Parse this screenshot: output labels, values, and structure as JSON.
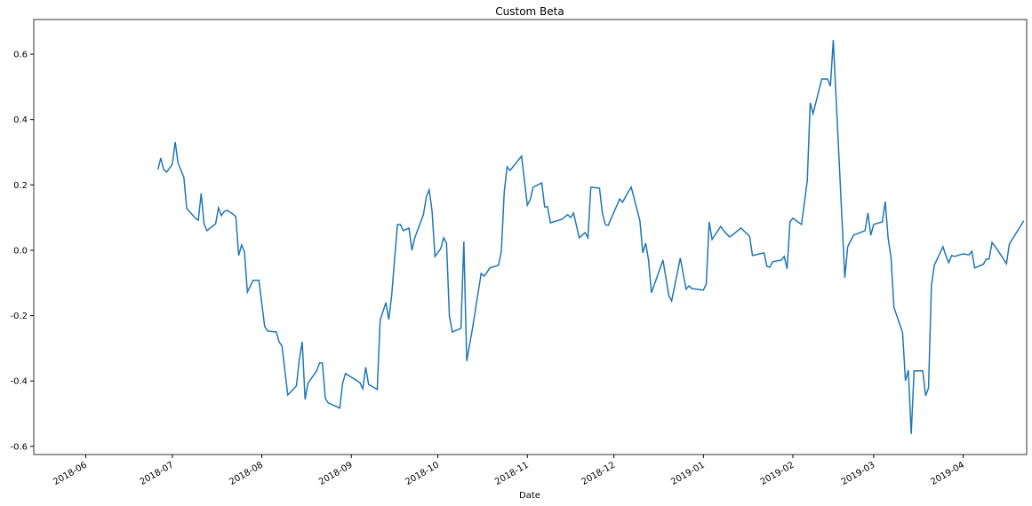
{
  "chart_data": {
    "type": "line",
    "title": "Custom Beta",
    "x_label": "Date",
    "x": [
      17708,
      17709,
      17710,
      17711,
      17713,
      17714,
      17715,
      17717,
      17718,
      17721,
      17722,
      17723,
      17724,
      17725,
      17728,
      17729,
      17730,
      17731,
      17732,
      17734,
      17735,
      17736,
      17737,
      17738,
      17739,
      17741,
      17743,
      17744,
      17745,
      17746,
      17749,
      17750,
      17751,
      17753,
      17756,
      17757,
      17758,
      17759,
      17760,
      17763,
      17764,
      17765,
      17766,
      17767,
      17771,
      17772,
      17773,
      17778,
      17779,
      17780,
      17781,
      17784,
      17785,
      17787,
      17788,
      17789,
      17791,
      17792,
      17793,
      17795,
      17796,
      17797,
      17800,
      17801,
      17802,
      17803,
      17804,
      17806,
      17807,
      17808,
      17809,
      17810,
      17813,
      17814,
      17815,
      17817,
      17820,
      17821,
      17822,
      17823,
      17826,
      17827,
      17828,
      17829,
      17830,
      17834,
      17836,
      17837,
      17838,
      17841,
      17842,
      17843,
      17844,
      17848,
      17850,
      17851,
      17852,
      17854,
      17856,
      17857,
      17858,
      17861,
      17862,
      17863,
      17864,
      17868,
      17869,
      17871,
      17872,
      17875,
      17876,
      17877,
      17878,
      17879,
      17883,
      17885,
      17886,
      17889,
      17891,
      17892,
      17893,
      17897,
      17898,
      17899,
      17900,
      17903,
      17904,
      17906,
      17907,
      17910,
      17913,
      17914,
      17918,
      17919,
      17920,
      17921,
      17924,
      17925,
      17926,
      17927,
      17928,
      17931,
      17933,
      17934,
      17935,
      17938,
      17940,
      17941,
      17942,
      17946,
      17947,
      17949,
      17953,
      17954,
      17955,
      17956,
      17959,
      17960,
      17961,
      17962,
      17963,
      17966,
      17967,
      17968,
      17969,
      17970,
      17973,
      17974,
      17975,
      17976,
      17977,
      17980,
      17981,
      17982,
      17983,
      17984,
      17987,
      17989,
      17990,
      17991,
      17994,
      17995,
      17996,
      17997,
      17999,
      18002,
      18003,
      18008
    ],
    "values": [
      0.247,
      0.282,
      0.247,
      0.239,
      0.263,
      0.331,
      0.266,
      0.223,
      0.128,
      0.098,
      0.092,
      0.174,
      0.081,
      0.06,
      0.081,
      0.13,
      0.106,
      0.119,
      0.122,
      0.111,
      0.103,
      -0.016,
      0.016,
      -0.005,
      -0.128,
      -0.092,
      -0.092,
      -0.163,
      -0.233,
      -0.247,
      -0.25,
      -0.28,
      -0.293,
      -0.443,
      -0.415,
      -0.334,
      -0.28,
      -0.456,
      -0.407,
      -0.369,
      -0.345,
      -0.345,
      -0.453,
      -0.467,
      -0.483,
      -0.407,
      -0.377,
      -0.405,
      -0.424,
      -0.358,
      -0.41,
      -0.426,
      -0.214,
      -0.16,
      -0.212,
      -0.138,
      0.079,
      0.079,
      0.06,
      0.068,
      0,
      0.038,
      0.109,
      0.163,
      0.185,
      0.119,
      -0.019,
      0.005,
      0.038,
      0.022,
      -0.201,
      -0.25,
      -0.239,
      0.027,
      -0.339,
      -0.239,
      -0.071,
      -0.079,
      -0.068,
      -0.054,
      -0.046,
      -0.003,
      0.179,
      0.255,
      0.244,
      0.288,
      0.138,
      0.155,
      0.193,
      0.206,
      0.133,
      0.133,
      0.084,
      0.095,
      0.109,
      0.1,
      0.114,
      0.038,
      0.054,
      0.038,
      0.193,
      0.19,
      0.114,
      0.079,
      0.076,
      0.157,
      0.147,
      0.179,
      0.193,
      0.09,
      -0.008,
      0.022,
      -0.03,
      -0.13,
      -0.03,
      -0.138,
      -0.155,
      -0.024,
      -0.119,
      -0.109,
      -0.117,
      -0.122,
      -0.103,
      0.087,
      0.033,
      0.073,
      0.06,
      0.041,
      0.046,
      0.068,
      0.043,
      -0.016,
      -0.008,
      -0.049,
      -0.052,
      -0.035,
      -0.03,
      -0.019,
      -0.057,
      0.087,
      0.098,
      0.079,
      0.214,
      0.451,
      0.418,
      0.524,
      0.524,
      0.502,
      0.643,
      -0.084,
      0.011,
      0.046,
      0.06,
      0.114,
      0.046,
      0.079,
      0.087,
      0.149,
      0.038,
      -0.022,
      -0.174,
      -0.252,
      -0.399,
      -0.367,
      -0.562,
      -0.369,
      -0.369,
      -0.445,
      -0.421,
      -0.109,
      -0.046,
      0.011,
      -0.016,
      -0.038,
      -0.016,
      -0.019,
      -0.011,
      -0.014,
      -0.003,
      -0.054,
      -0.043,
      -0.027,
      -0.027,
      0.024,
      0,
      -0.041,
      0.019,
      0.09
    ],
    "color": "#1f77b4",
    "xlim": [
      17665,
      18009
    ],
    "xticks": [
      {
        "value": 17683,
        "label": "2018-06"
      },
      {
        "value": 17713,
        "label": "2018-07"
      },
      {
        "value": 17744,
        "label": "2018-08"
      },
      {
        "value": 17775,
        "label": "2018-09"
      },
      {
        "value": 17805,
        "label": "2018-10"
      },
      {
        "value": 17836,
        "label": "2018-11"
      },
      {
        "value": 17866,
        "label": "2018-12"
      },
      {
        "value": 17897,
        "label": "2019-01"
      },
      {
        "value": 17928,
        "label": "2019-02"
      },
      {
        "value": 17956,
        "label": "2019-03"
      },
      {
        "value": 17987,
        "label": "2019-04"
      }
    ],
    "ylim": [
      -0.625,
      0.706
    ],
    "yticks": [
      -0.6,
      -0.4,
      -0.2,
      {
        "value": 0,
        "label": "0.0"
      },
      0.2,
      0.4,
      0.6
    ],
    "grid": false
  }
}
